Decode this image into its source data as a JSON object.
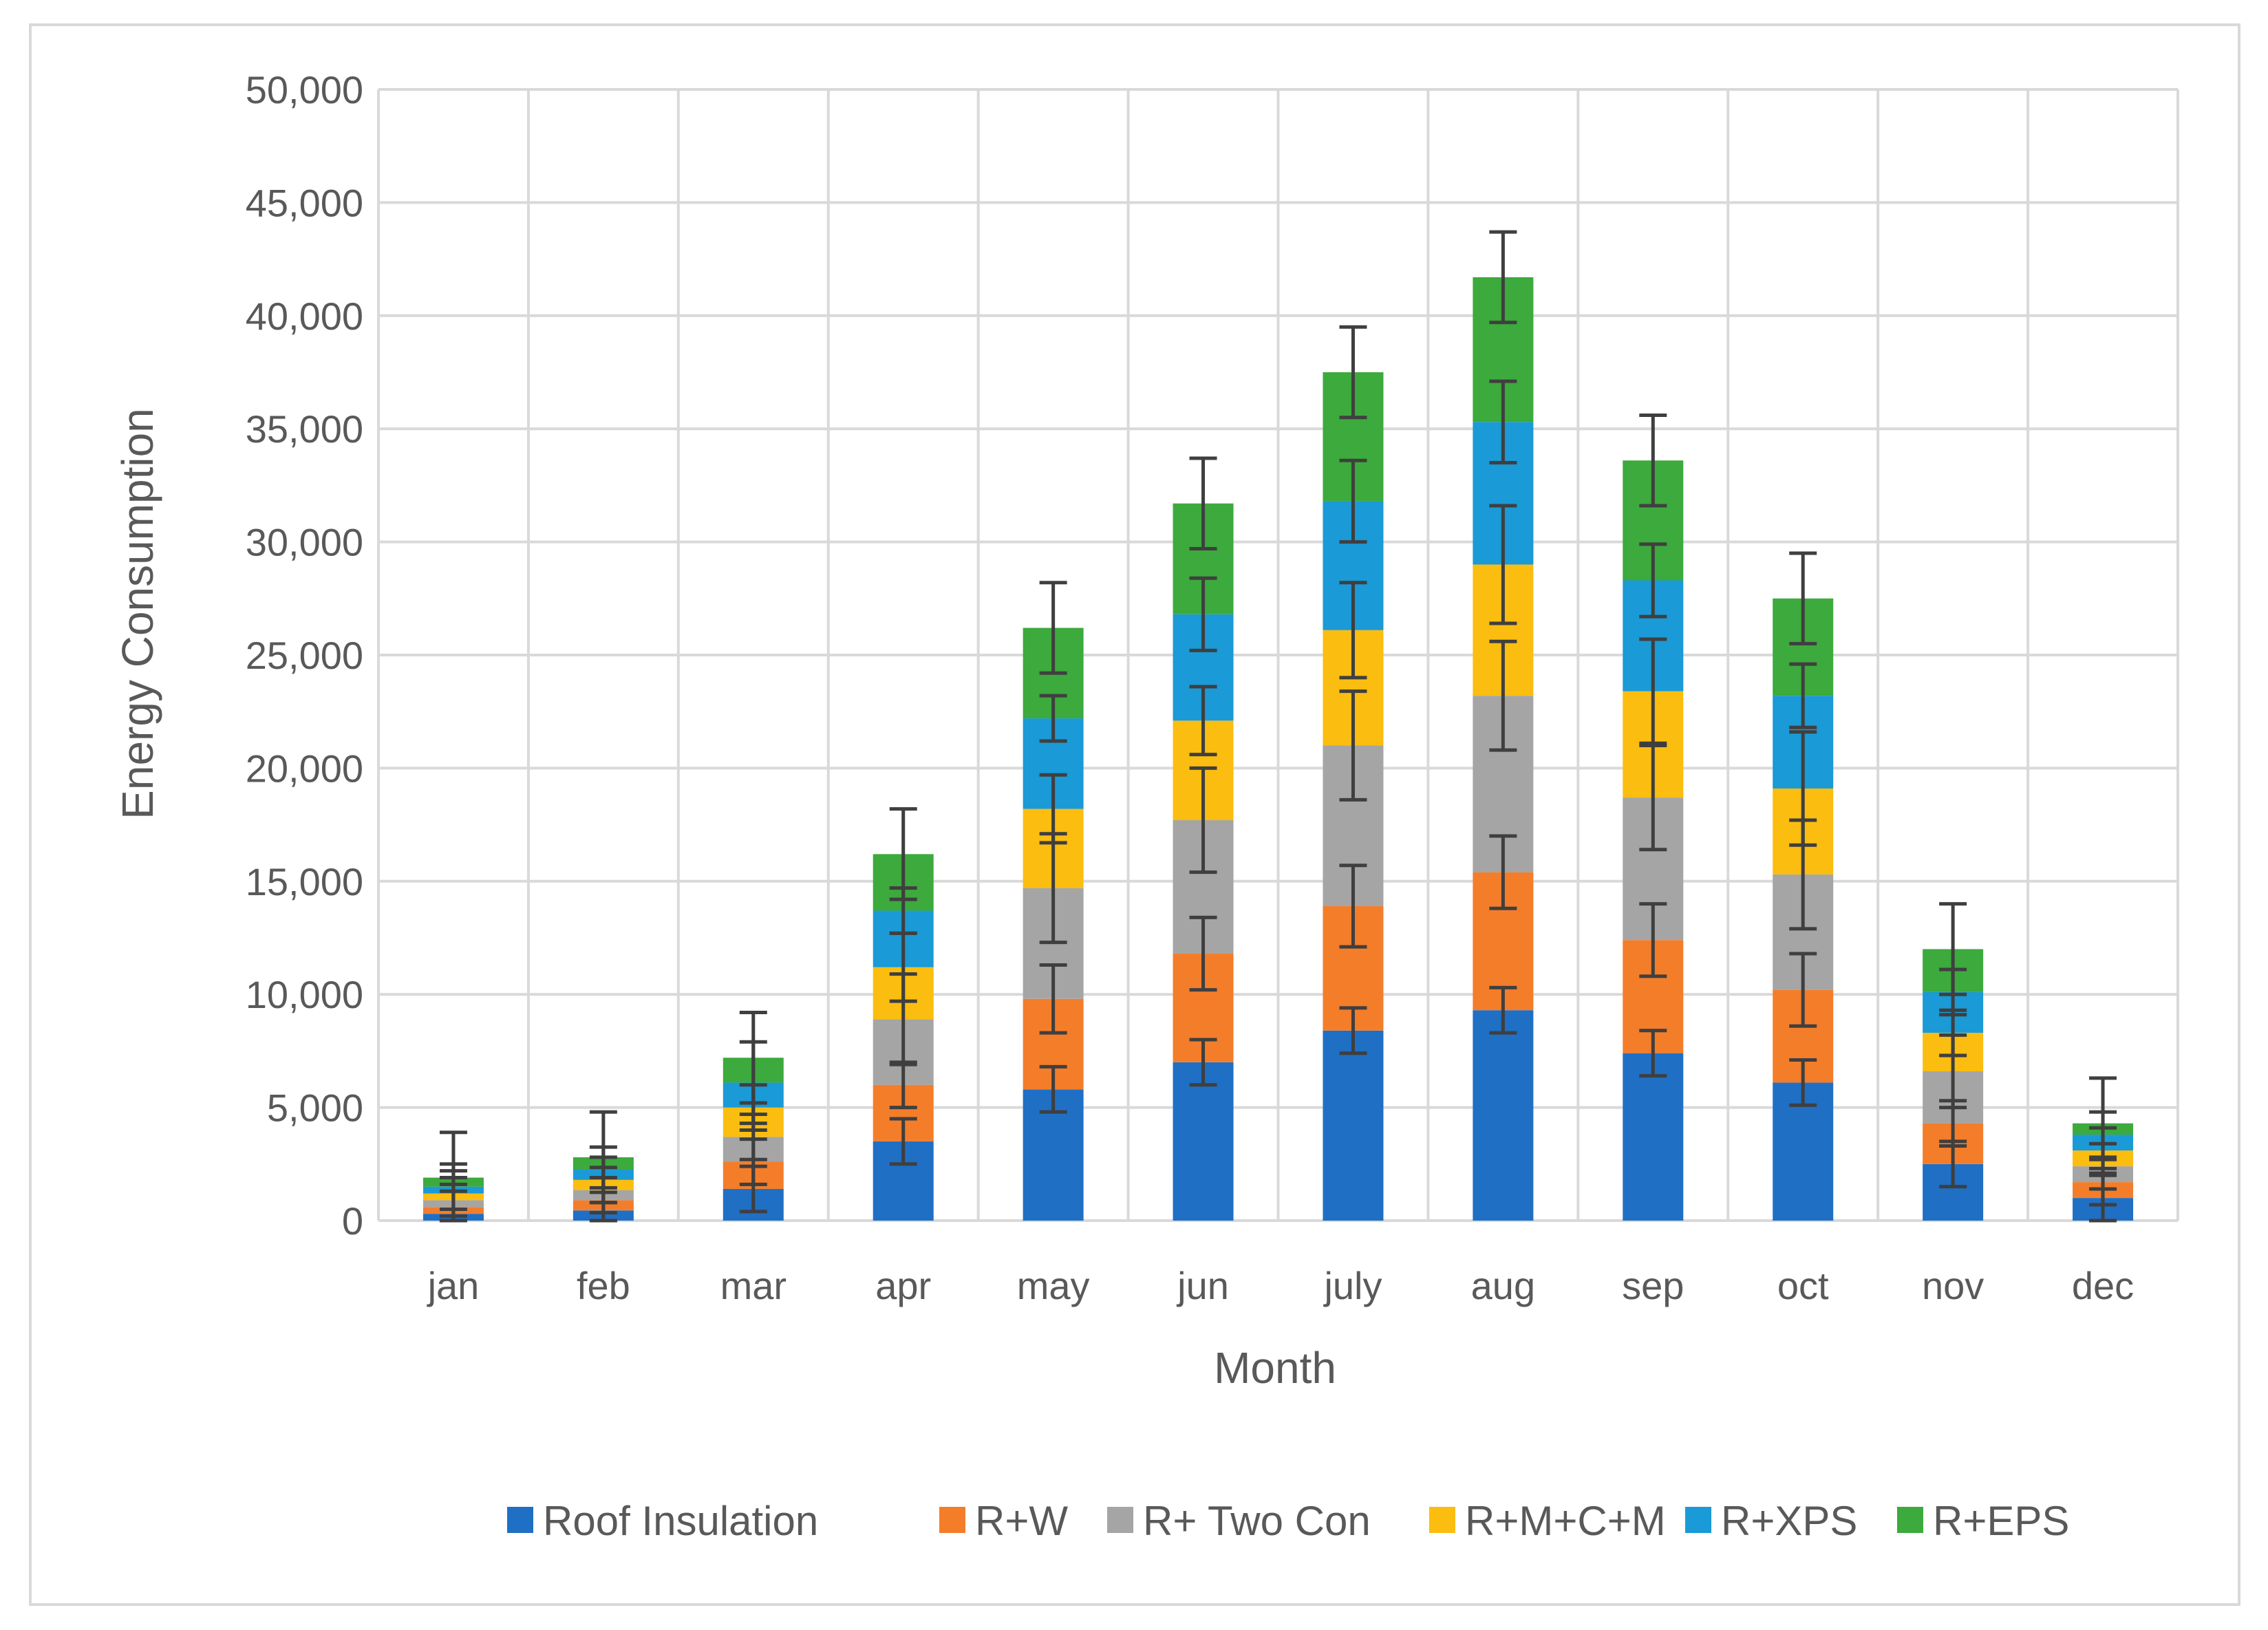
{
  "chart_data": {
    "type": "bar",
    "stacked": true,
    "title": "",
    "xlabel": "Month",
    "ylabel": "Energy Consumption",
    "ylim": [
      0,
      50000
    ],
    "ytick_values": [
      0,
      5000,
      10000,
      15000,
      20000,
      25000,
      30000,
      35000,
      40000,
      45000,
      50000
    ],
    "ytick_labels": [
      "0",
      "5,000",
      "10,000",
      "15,000",
      "20,000",
      "25,000",
      "30,000",
      "35,000",
      "40,000",
      "45,000",
      "50,000"
    ],
    "grid": true,
    "legend_position": "bottom",
    "error_bars": true,
    "categories": [
      "jan",
      "feb",
      "mar",
      "apr",
      "may",
      "jun",
      "july",
      "aug",
      "sep",
      "oct",
      "nov",
      "dec"
    ],
    "series": [
      {
        "name": "Roof Insulation",
        "color": "#1f6fc5",
        "values": [
          300,
          450,
          1400,
          3500,
          5800,
          7000,
          8400,
          9300,
          7400,
          6100,
          2500,
          1000
        ],
        "errors": [
          1000,
          1000,
          1000,
          1000,
          1000,
          1000,
          1000,
          1000,
          1000,
          1000,
          1000,
          1000
        ]
      },
      {
        "name": "R+W",
        "color": "#f47d2a",
        "values": [
          300,
          450,
          1200,
          2500,
          4000,
          4800,
          5500,
          6100,
          5000,
          4100,
          1800,
          700
        ],
        "errors": [
          1000,
          1000,
          1000,
          1000,
          1500,
          1600,
          1800,
          1600,
          1600,
          1600,
          1000,
          1000
        ]
      },
      {
        "name": "R+ Two Con",
        "color": "#a5a5a5",
        "values": [
          300,
          450,
          1100,
          2900,
          4900,
          5900,
          7100,
          7800,
          6300,
          5100,
          2300,
          700
        ],
        "errors": [
          1000,
          1000,
          1000,
          2000,
          2400,
          2300,
          2400,
          2400,
          2300,
          2400,
          1600,
          1000
        ]
      },
      {
        "name": "R+M+C+M",
        "color": "#fbbd0f",
        "values": [
          300,
          450,
          1300,
          2300,
          3500,
          4400,
          5100,
          5800,
          4700,
          3800,
          1700,
          700
        ],
        "errors": [
          1000,
          1000,
          1000,
          1500,
          1500,
          1500,
          2100,
          2600,
          2300,
          2500,
          1000,
          1000
        ]
      },
      {
        "name": "R+XPS",
        "color": "#1a9ad6",
        "values": [
          300,
          450,
          1100,
          2500,
          4000,
          4700,
          5700,
          6300,
          4900,
          4100,
          1800,
          700
        ],
        "errors": [
          1000,
          1000,
          1800,
          1000,
          1000,
          1600,
          1800,
          1800,
          1600,
          1400,
          1000,
          1000
        ]
      },
      {
        "name": "R+EPS",
        "color": "#3caa3c",
        "values": [
          400,
          550,
          1100,
          2500,
          4000,
          4900,
          5700,
          6400,
          5300,
          4300,
          1900,
          500
        ],
        "errors": [
          2000,
          2000,
          2000,
          2000,
          2000,
          2000,
          2000,
          2000,
          2000,
          2000,
          2000,
          2000
        ]
      }
    ]
  }
}
